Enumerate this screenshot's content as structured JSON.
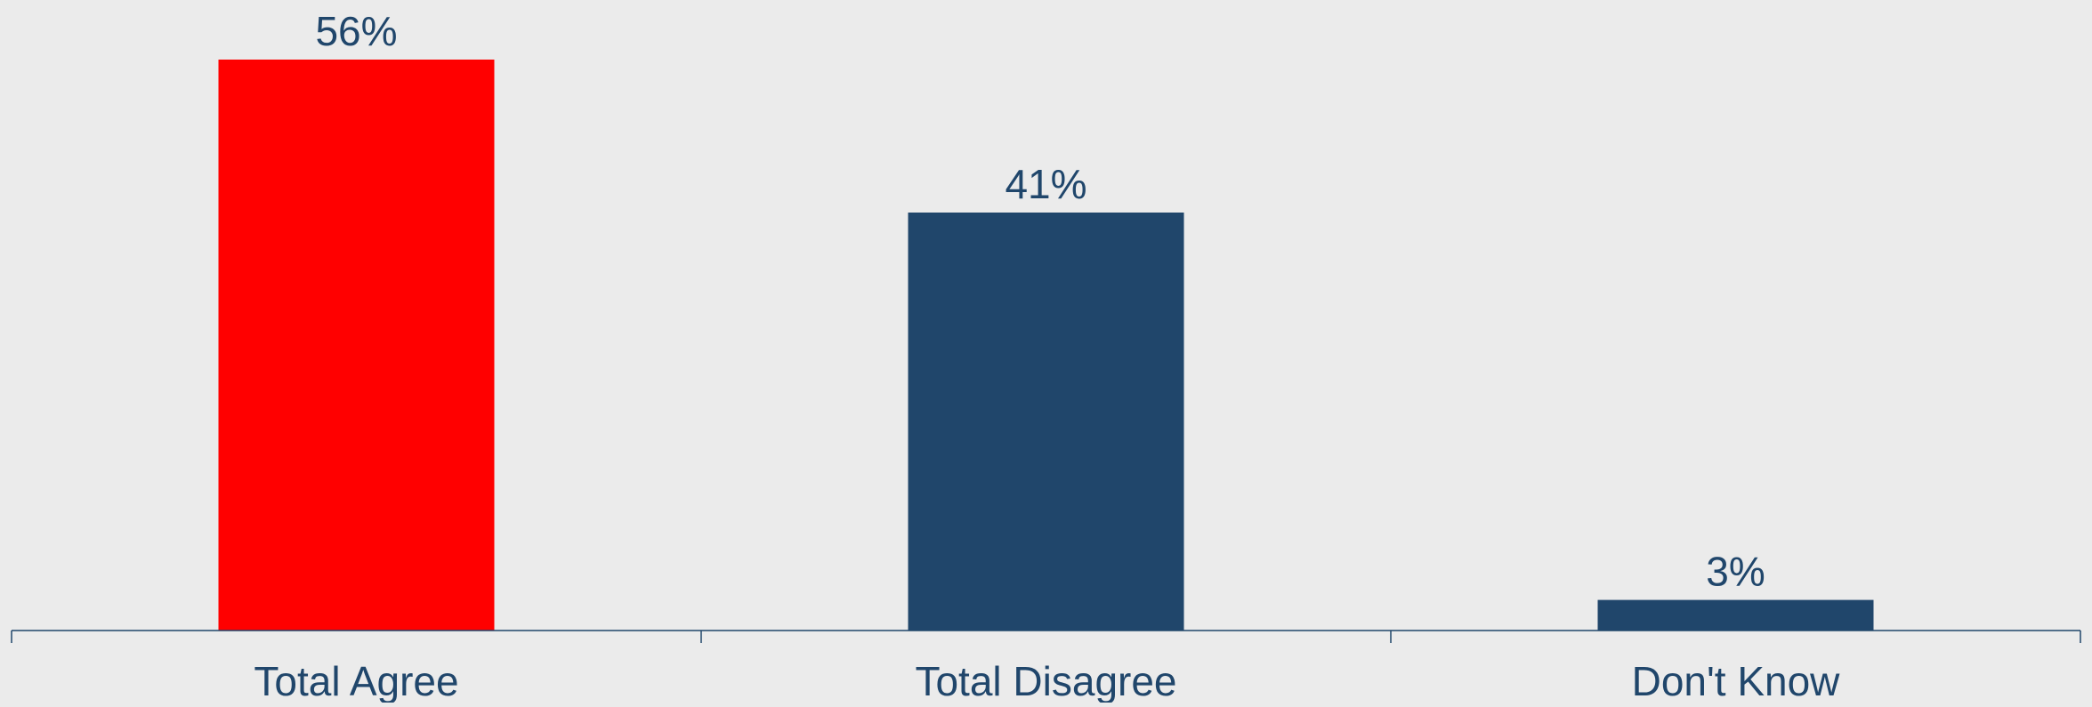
{
  "chart_data": {
    "type": "bar",
    "categories": [
      "Total Agree",
      "Total Disagree",
      "Don't Know"
    ],
    "values": [
      56,
      41,
      3
    ],
    "data_labels": [
      "56%",
      "41%",
      "3%"
    ],
    "title": "",
    "xlabel": "",
    "ylabel": "",
    "ylim": [
      0,
      56
    ],
    "grid": false,
    "legend": "none",
    "colors": {
      "bars": [
        "#ff0000",
        "#20466b",
        "#20466b"
      ],
      "label_text": "#20466b",
      "axis": "#20466b",
      "background": "#ebebeb"
    }
  }
}
